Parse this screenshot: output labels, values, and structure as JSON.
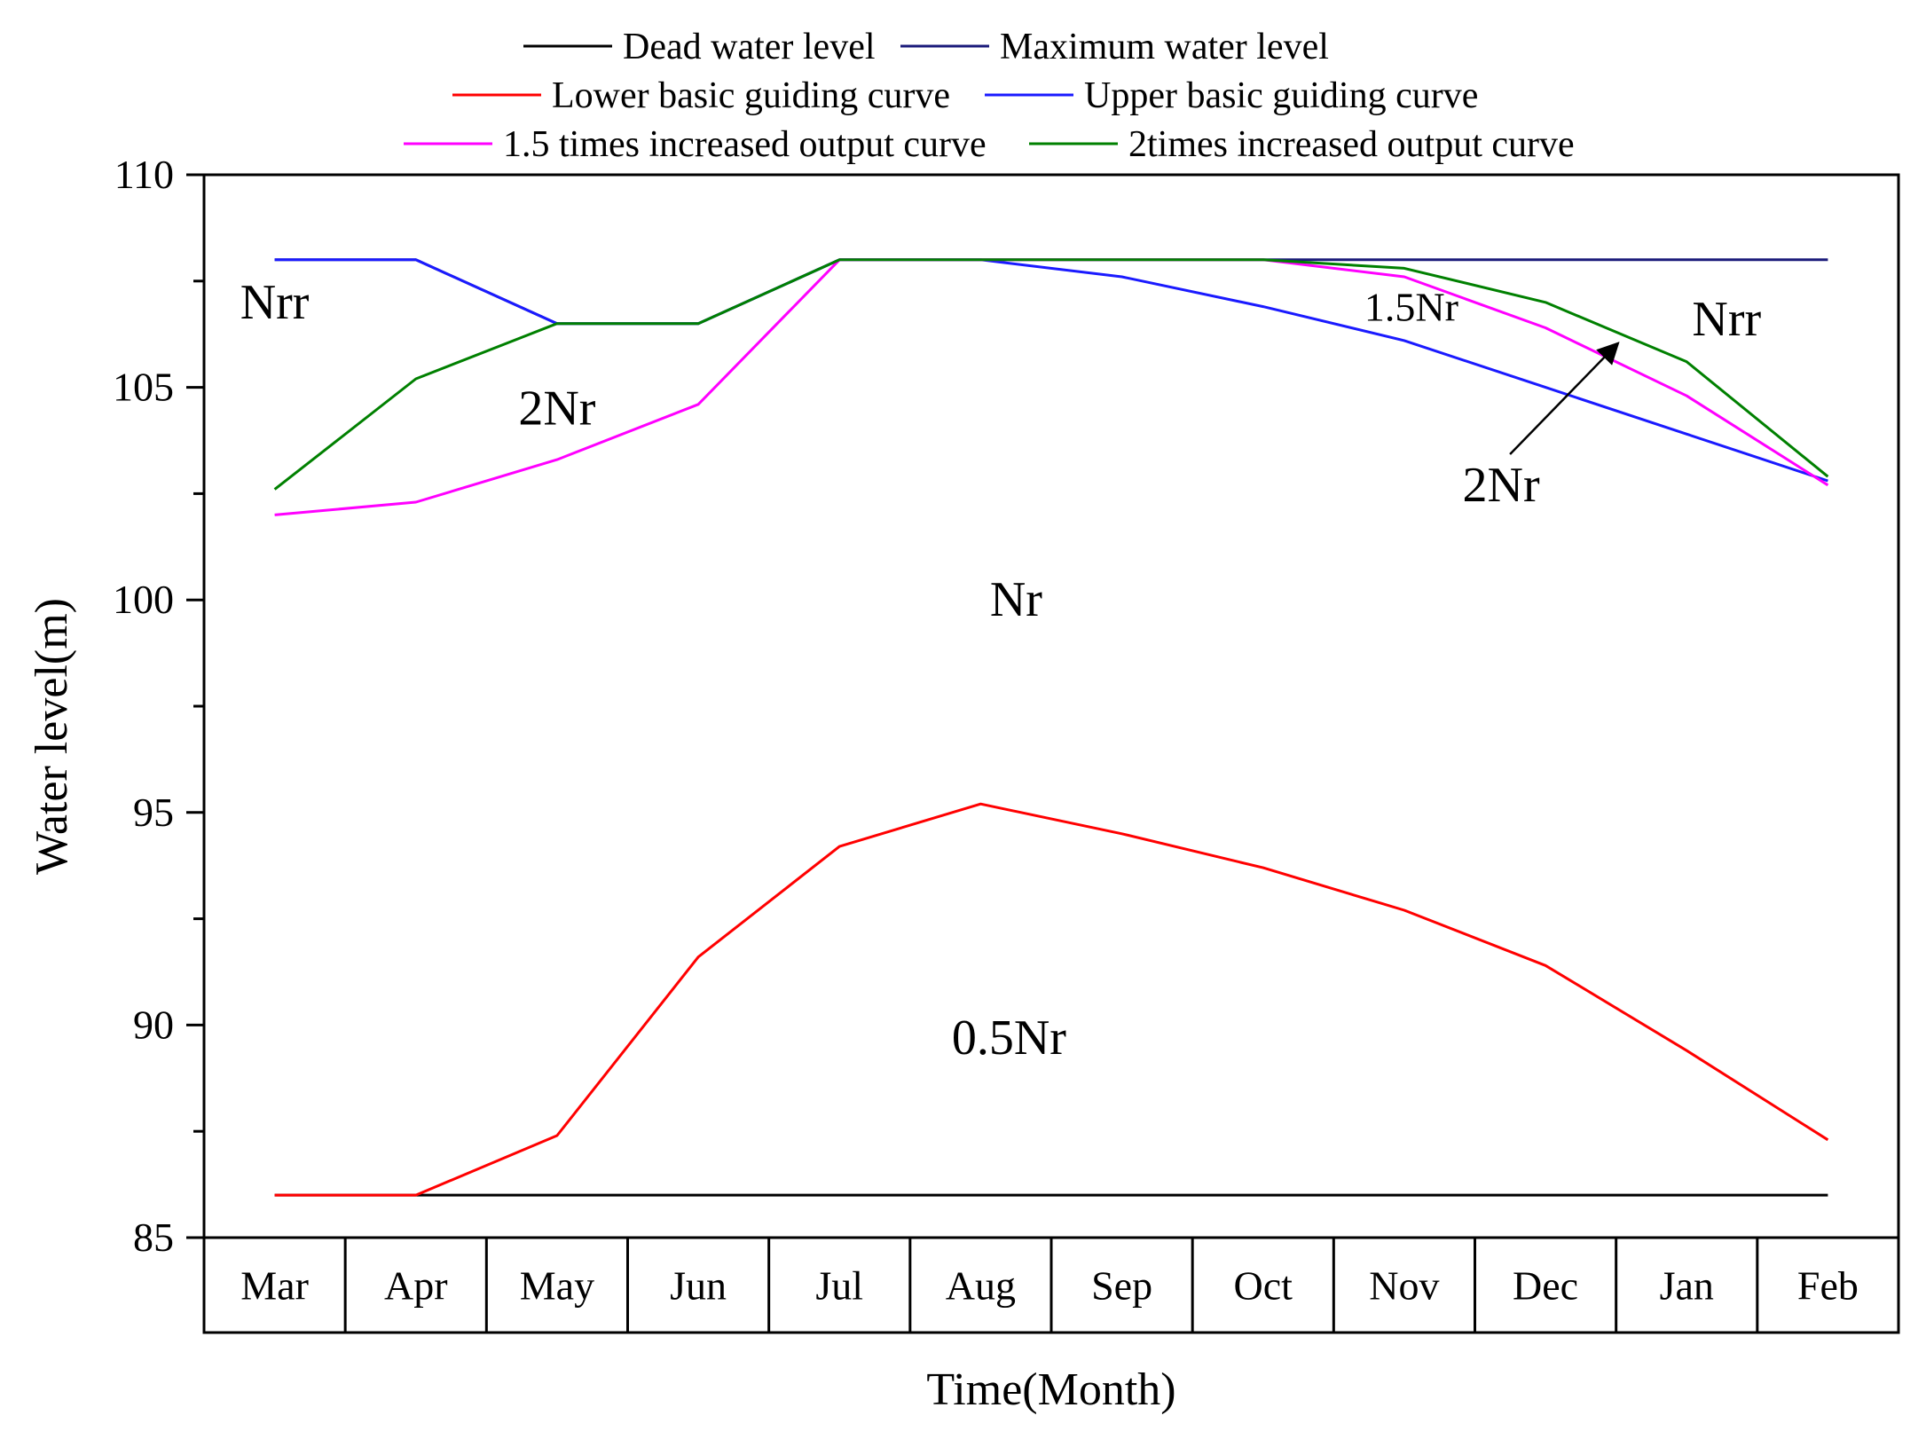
{
  "chart_data": {
    "type": "line",
    "categories": [
      "Mar",
      "Apr",
      "May",
      "Jun",
      "Jul",
      "Aug",
      "Sep",
      "Oct",
      "Nov",
      "Dec",
      "Jan",
      "Feb"
    ],
    "xlabel": "Time(Month)",
    "ylabel": "Water level(m)",
    "ylim": [
      85,
      110
    ],
    "yticks": [
      85,
      90,
      95,
      100,
      105,
      110
    ],
    "grid": false,
    "legend_position": "top",
    "series": [
      {
        "name": "Dead water level",
        "color": "#000000",
        "values": [
          86,
          86,
          86,
          86,
          86,
          86,
          86,
          86,
          86,
          86,
          86,
          86
        ]
      },
      {
        "name": "Maximum water level",
        "color": "#1a1a7a",
        "values": [
          108,
          108,
          106.5,
          106.5,
          108,
          108,
          108,
          108,
          108,
          108,
          108,
          108
        ]
      },
      {
        "name": "Lower basic guiding curve",
        "color": "#ff0000",
        "values": [
          86,
          86,
          87.4,
          91.6,
          94.2,
          95.2,
          94.5,
          93.7,
          92.7,
          91.4,
          89.4,
          87.3
        ]
      },
      {
        "name": "Upper basic guiding curve",
        "color": "#1a1aff",
        "values": [
          108,
          108,
          106.5,
          106.5,
          108,
          108,
          107.6,
          106.9,
          106.1,
          105.0,
          103.9,
          102.8
        ]
      },
      {
        "name": "1.5 times increased output curve",
        "color": "#ff00ff",
        "values": [
          102.0,
          102.3,
          103.3,
          104.6,
          108,
          108,
          108,
          108,
          107.6,
          106.4,
          104.8,
          102.7
        ]
      },
      {
        "name": "2times increased output curve",
        "color": "#008000",
        "values": [
          102.6,
          105.2,
          106.5,
          106.5,
          108,
          108,
          108,
          108,
          107.8,
          107.0,
          105.6,
          102.9
        ]
      }
    ],
    "annotations": [
      {
        "text": "Nrr",
        "x": "Mar",
        "y": 107
      },
      {
        "text": "2Nr",
        "x": "May",
        "y": 104.5
      },
      {
        "text": "Nr",
        "x": "Aug",
        "y": 100
      },
      {
        "text": "0.5Nr",
        "x": "Aug",
        "y": 89.7
      },
      {
        "text": "1.5Nr",
        "x": "Nov",
        "y": 106.9
      },
      {
        "text": "Nrr",
        "x": "Jan",
        "y": 106.6
      },
      {
        "text": "2Nr",
        "x": "Dec",
        "y": 102.7
      }
    ]
  }
}
